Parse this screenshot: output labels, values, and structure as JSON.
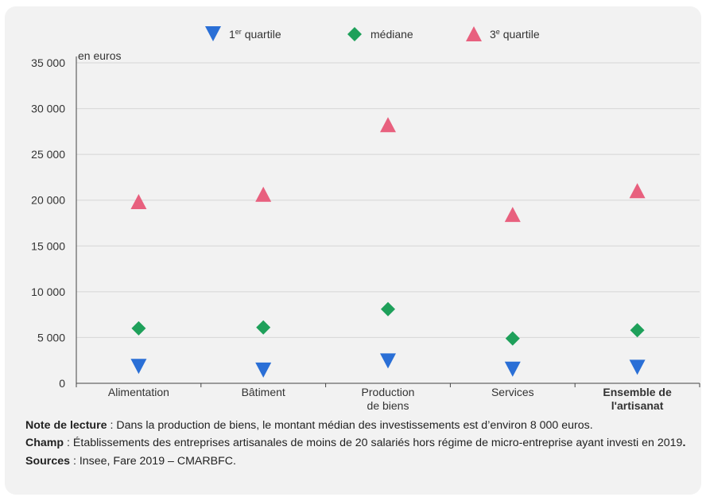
{
  "chart_data": {
    "type": "scatter",
    "ylabel": "en euros",
    "ylim": [
      0,
      35000
    ],
    "yticks": [
      0,
      5000,
      10000,
      15000,
      20000,
      25000,
      30000,
      35000
    ],
    "ytick_labels": [
      "0",
      "5 000",
      "10 000",
      "15 000",
      "20 000",
      "25 000",
      "30 000",
      "35 000"
    ],
    "categories": [
      [
        "Alimentation"
      ],
      [
        "Bâtiment"
      ],
      [
        "Production",
        "de biens"
      ],
      [
        "Services"
      ],
      [
        "Ensemble de",
        "l'artisanat"
      ]
    ],
    "bold_categories": [
      4
    ],
    "series": [
      {
        "name_main": "1",
        "name_sup": "er",
        "name_rest": " quartile",
        "marker": "triangle-down",
        "color": "#2a6fd6",
        "values": [
          1800,
          1400,
          2400,
          1500,
          1700
        ]
      },
      {
        "name_main": "médiane",
        "name_sup": "",
        "name_rest": "",
        "marker": "diamond",
        "color": "#1ea05a",
        "values": [
          6000,
          6100,
          8100,
          4900,
          5800
        ]
      },
      {
        "name_main": "3",
        "name_sup": "e",
        "name_rest": " quartile",
        "marker": "triangle-up",
        "color": "#e8607e",
        "values": [
          19800,
          20600,
          28200,
          18400,
          21000
        ]
      }
    ],
    "legend_position": "top-center",
    "grid": "horizontal"
  },
  "notes": {
    "lecture_label": "Note de lecture",
    "lecture_text": " : Dans la production de biens, le montant médian des investissements est d’environ 8 000 euros.",
    "champ_label": "Champ",
    "champ_text": " : Établissements des entreprises artisanales de moins de 20 salariés hors régime de micro-entreprise ayant investi en 2019",
    "champ_end": ".",
    "sources_label": "Sources",
    "sources_text": " : Insee, Fare 2019 – CMARBFC."
  }
}
